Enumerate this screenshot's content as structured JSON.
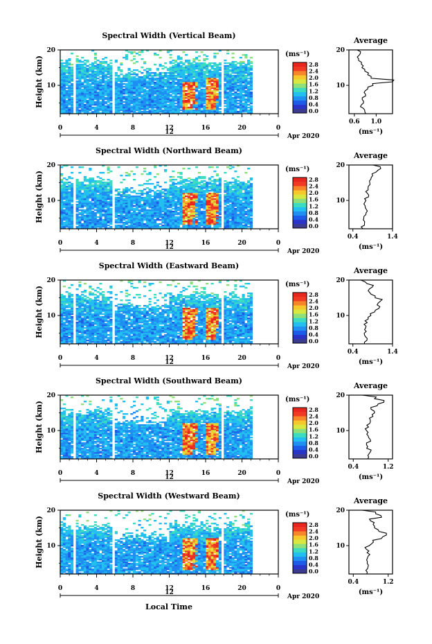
{
  "colors": {
    "colormap": [
      "#3b3b8f",
      "#2a35c8",
      "#1d5ce6",
      "#1f8ff2",
      "#22c0f0",
      "#3ddcc0",
      "#8fe07a",
      "#d8e840",
      "#f6c82c",
      "#f7862a",
      "#f03a24",
      "#e8261e"
    ],
    "line": "#000000",
    "background": "#ffffff"
  },
  "xaxis_label": "Local Time",
  "date_label": "Apr 2020",
  "day_marker": "12",
  "cbar_unit": "(ms⁻¹)",
  "avg_title": "Average",
  "avg_unit": "(ms⁻¹)",
  "ylabel": "Height (km)",
  "chart_data": [
    {
      "type": "heatmap",
      "title": "Spectral Width (Vertical Beam)",
      "xlabel": "",
      "ylabel": "Height (km)",
      "xlim": [
        0,
        24
      ],
      "ylim": [
        2,
        20
      ],
      "x_ticks": [
        "0",
        "4",
        "8",
        "12",
        "16",
        "20",
        "0"
      ],
      "y_ticks": [
        "20",
        "10"
      ],
      "colorbar": {
        "unit": "(ms⁻¹)",
        "ticks": [
          "2.8",
          "2.4",
          "2.0",
          "1.6",
          "1.2",
          "0.8",
          "0.4",
          "0.0"
        ],
        "range": [
          0.0,
          2.8
        ]
      },
      "data_gaps_hours": [
        [
          1.3,
          1.7
        ],
        [
          5.8,
          6.1
        ],
        [
          15.3,
          15.5
        ],
        [
          17.6,
          18.1
        ],
        [
          21.2,
          24
        ]
      ],
      "max_height_km": 20,
      "high_width_regions": [
        {
          "time_hours": [
            13.5,
            15.2
          ],
          "height_km": [
            3,
            11
          ]
        },
        {
          "time_hours": [
            16.0,
            17.5
          ],
          "height_km": [
            3,
            12
          ]
        }
      ],
      "average_profile": {
        "title": "Average",
        "xlabel": "(ms⁻¹)",
        "xlim": [
          0.5,
          1.3
        ],
        "x_ticks": [
          "0.6",
          "1.0"
        ],
        "y_ticks": [
          "20",
          "10"
        ],
        "height_km": [
          2,
          3,
          4,
          5,
          6,
          7,
          8,
          9,
          10,
          11,
          12,
          13,
          14,
          15,
          16,
          17,
          18,
          19,
          20
        ],
        "values": [
          0.8,
          0.78,
          0.72,
          0.76,
          0.74,
          0.8,
          0.78,
          0.84,
          0.95,
          1.3,
          0.9,
          0.85,
          0.8,
          0.74,
          0.72,
          0.68,
          0.66,
          0.7,
          0.65
        ]
      }
    },
    {
      "type": "heatmap",
      "title": "Spectral Width (Northward Beam)",
      "xlabel": "",
      "ylabel": "Height (km)",
      "xlim": [
        0,
        24
      ],
      "ylim": [
        2,
        20
      ],
      "x_ticks": [
        "0",
        "4",
        "8",
        "12",
        "16",
        "20",
        "0"
      ],
      "y_ticks": [
        "20",
        "10"
      ],
      "colorbar": {
        "unit": "(ms⁻¹)",
        "ticks": [
          "2.8",
          "2.4",
          "2.0",
          "1.6",
          "1.2",
          "0.8",
          "0.4",
          "0.0"
        ],
        "range": [
          0.0,
          2.8
        ]
      },
      "data_gaps_hours": [
        [
          1.3,
          1.7
        ],
        [
          5.8,
          6.1
        ],
        [
          15.3,
          15.5
        ],
        [
          17.6,
          18.1
        ],
        [
          21.2,
          24
        ]
      ],
      "max_height_km": 19,
      "high_width_regions": [
        {
          "time_hours": [
            13.5,
            15.2
          ],
          "height_km": [
            3,
            12
          ]
        },
        {
          "time_hours": [
            16.0,
            17.5
          ],
          "height_km": [
            3,
            12
          ]
        }
      ],
      "average_profile": {
        "title": "Average",
        "xlabel": "(ms⁻¹)",
        "xlim": [
          0.3,
          1.4
        ],
        "x_ticks": [
          "0.4",
          "1.4"
        ],
        "y_ticks": [
          "20",
          "10"
        ],
        "height_km": [
          2,
          3,
          4,
          5,
          6,
          7,
          8,
          9,
          10,
          11,
          12,
          13,
          14,
          15,
          16,
          17,
          18,
          19,
          20
        ],
        "values": [
          0.65,
          0.68,
          0.7,
          0.68,
          0.72,
          0.75,
          0.7,
          0.68,
          0.72,
          0.78,
          0.75,
          0.78,
          0.8,
          0.82,
          0.85,
          0.9,
          1.0,
          1.1,
          0.9
        ]
      }
    },
    {
      "type": "heatmap",
      "title": "Spectral Width (Eastward Beam)",
      "xlabel": "",
      "ylabel": "Height (km)",
      "xlim": [
        0,
        24
      ],
      "ylim": [
        2,
        20
      ],
      "x_ticks": [
        "0",
        "4",
        "8",
        "12",
        "16",
        "20",
        "0"
      ],
      "y_ticks": [
        "20",
        "10"
      ],
      "colorbar": {
        "unit": "(ms⁻¹)",
        "ticks": [
          "2.8",
          "2.4",
          "2.0",
          "1.6",
          "1.2",
          "0.8",
          "0.4",
          "0.0"
        ],
        "range": [
          0.0,
          2.8
        ]
      },
      "data_gaps_hours": [
        [
          1.3,
          1.7
        ],
        [
          5.8,
          6.1
        ],
        [
          15.3,
          15.5
        ],
        [
          17.6,
          18.1
        ],
        [
          21.2,
          24
        ]
      ],
      "max_height_km": 19,
      "high_width_regions": [
        {
          "time_hours": [
            13.5,
            15.2
          ],
          "height_km": [
            3,
            12
          ]
        },
        {
          "time_hours": [
            16.0,
            17.5
          ],
          "height_km": [
            3,
            12
          ]
        }
      ],
      "average_profile": {
        "title": "Average",
        "xlabel": "(ms⁻¹)",
        "xlim": [
          0.3,
          1.4
        ],
        "x_ticks": [
          "0.4",
          "1.4"
        ],
        "y_ticks": [
          "20",
          "10"
        ],
        "height_km": [
          2,
          3,
          4,
          5,
          6,
          7,
          8,
          9,
          10,
          11,
          12,
          13,
          14,
          15,
          16,
          17,
          18,
          19,
          20
        ],
        "values": [
          0.7,
          0.75,
          0.72,
          0.7,
          0.68,
          0.72,
          0.75,
          0.8,
          0.85,
          0.95,
          1.05,
          1.0,
          1.1,
          0.95,
          0.85,
          0.8,
          0.9,
          0.75,
          0.6
        ]
      }
    },
    {
      "type": "heatmap",
      "title": "Spectral Width (Southward Beam)",
      "xlabel": "",
      "ylabel": "Height (km)",
      "xlim": [
        0,
        24
      ],
      "ylim": [
        2,
        20
      ],
      "x_ticks": [
        "0",
        "4",
        "8",
        "12",
        "16",
        "20",
        "0"
      ],
      "y_ticks": [
        "20",
        "10"
      ],
      "colorbar": {
        "unit": "(ms⁻¹)",
        "ticks": [
          "2.8",
          "2.4",
          "2.0",
          "1.6",
          "1.2",
          "0.8",
          "0.4",
          "0.0"
        ],
        "range": [
          0.0,
          2.8
        ]
      },
      "data_gaps_hours": [
        [
          1.3,
          1.7
        ],
        [
          5.8,
          6.1
        ],
        [
          15.3,
          15.5
        ],
        [
          17.6,
          18.1
        ],
        [
          21.2,
          24
        ]
      ],
      "max_height_km": 19,
      "high_width_regions": [
        {
          "time_hours": [
            13.5,
            15.2
          ],
          "height_km": [
            3,
            12
          ]
        },
        {
          "time_hours": [
            16.0,
            17.5
          ],
          "height_km": [
            3,
            12
          ]
        }
      ],
      "average_profile": {
        "title": "Average",
        "xlabel": "(ms⁻¹)",
        "xlim": [
          0.3,
          1.3
        ],
        "x_ticks": [
          "0.4",
          "1.2"
        ],
        "y_ticks": [
          "20",
          "10"
        ],
        "height_km": [
          2,
          3,
          4,
          5,
          6,
          7,
          8,
          9,
          10,
          11,
          12,
          13,
          14,
          15,
          16,
          17,
          18,
          19,
          20
        ],
        "values": [
          0.72,
          0.75,
          0.8,
          0.72,
          0.7,
          0.8,
          0.75,
          0.72,
          0.7,
          0.75,
          0.78,
          0.8,
          0.85,
          0.9,
          0.8,
          0.95,
          1.1,
          0.9,
          0.6
        ]
      }
    },
    {
      "type": "heatmap",
      "title": "Spectral Width (Westward Beam)",
      "xlabel": "Local Time",
      "ylabel": "Height (km)",
      "xlim": [
        0,
        24
      ],
      "ylim": [
        2,
        20
      ],
      "x_ticks": [
        "0",
        "4",
        "8",
        "12",
        "16",
        "20",
        "0"
      ],
      "y_ticks": [
        "20",
        "10"
      ],
      "colorbar": {
        "unit": "(ms⁻¹)",
        "ticks": [
          "2.8",
          "2.4",
          "2.0",
          "1.6",
          "1.2",
          "0.8",
          "0.4",
          "0.0"
        ],
        "range": [
          0.0,
          2.8
        ]
      },
      "data_gaps_hours": [
        [
          1.3,
          1.7
        ],
        [
          5.8,
          6.1
        ],
        [
          15.3,
          15.5
        ],
        [
          17.6,
          18.1
        ],
        [
          21.2,
          24
        ]
      ],
      "max_height_km": 19,
      "high_width_regions": [
        {
          "time_hours": [
            13.5,
            15.2
          ],
          "height_km": [
            3,
            12
          ]
        },
        {
          "time_hours": [
            16.0,
            17.5
          ],
          "height_km": [
            3,
            12
          ]
        }
      ],
      "average_profile": {
        "title": "Average",
        "xlabel": "(ms⁻¹)",
        "xlim": [
          0.3,
          1.3
        ],
        "x_ticks": [
          "0.4",
          "1.2"
        ],
        "y_ticks": [
          "20",
          "10"
        ],
        "height_km": [
          2,
          3,
          4,
          5,
          6,
          7,
          8,
          9,
          10,
          11,
          12,
          13,
          14,
          15,
          16,
          17,
          18,
          19,
          20
        ],
        "values": [
          0.72,
          0.7,
          0.75,
          0.72,
          0.7,
          0.75,
          0.72,
          0.7,
          0.78,
          0.85,
          1.05,
          1.15,
          1.0,
          0.9,
          0.85,
          0.8,
          1.05,
          0.9,
          0.6
        ]
      }
    }
  ]
}
